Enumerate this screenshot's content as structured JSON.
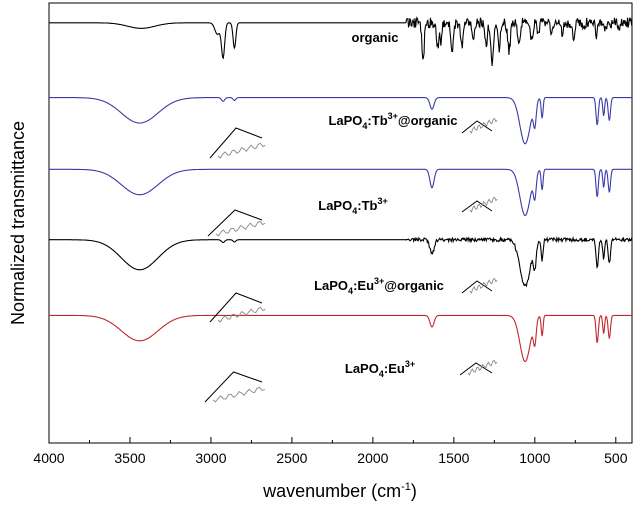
{
  "chart_data": {
    "type": "line",
    "title": "",
    "xlabel": "wavenumber (cm",
    "xlabel_sup": "-1",
    "xlabel_close": ")",
    "ylabel": "Normalized transmittance",
    "xlim": [
      4000,
      400
    ],
    "x_reversed": true,
    "x_ticks": [
      "4000",
      "3500",
      "3000",
      "2500",
      "2000",
      "1500",
      "1000",
      "500"
    ],
    "y_ticks_labeled": false,
    "grid": false,
    "legend": "none",
    "series": [
      {
        "label_main": "organic",
        "label_sub": "",
        "label_sup": "",
        "label_tail": "",
        "color": "#000000",
        "base": 0.955,
        "depth_scale": 0.105,
        "peaks": [
          [
            3430,
            0.12,
            120
          ],
          [
            2960,
            0.25,
            22
          ],
          [
            2925,
            0.75,
            14
          ],
          [
            2855,
            0.55,
            12
          ],
          [
            1690,
            0.8,
            10
          ],
          [
            1600,
            0.55,
            10
          ],
          [
            1580,
            0.4,
            8
          ],
          [
            1510,
            0.6,
            10
          ],
          [
            1450,
            0.55,
            12
          ],
          [
            1380,
            0.45,
            10
          ],
          [
            1300,
            0.5,
            10
          ],
          [
            1265,
            0.85,
            12
          ],
          [
            1220,
            0.55,
            10
          ],
          [
            1160,
            0.6,
            12
          ],
          [
            1100,
            0.45,
            12
          ],
          [
            1020,
            0.35,
            12
          ],
          [
            980,
            0.25,
            10
          ],
          [
            900,
            0.2,
            10
          ],
          [
            830,
            0.25,
            10
          ],
          [
            760,
            0.3,
            10
          ],
          [
            700,
            0.2,
            10
          ],
          [
            620,
            0.25,
            10
          ],
          [
            560,
            0.2,
            10
          ],
          [
            480,
            0.2,
            10
          ]
        ],
        "noise": 0.012
      },
      {
        "label_main": "LaPO",
        "label_sub": "4",
        "label_tail": ":Tb",
        "label_sup": "3+",
        "label_after": "@organic",
        "color": "#3a3aa8",
        "base": 0.785,
        "depth_scale": 0.105,
        "peaks": [
          [
            3440,
            0.55,
            160
          ],
          [
            2925,
            0.08,
            14
          ],
          [
            2855,
            0.06,
            12
          ],
          [
            1635,
            0.25,
            18
          ],
          [
            1060,
            1.0,
            45
          ],
          [
            1000,
            0.5,
            12
          ],
          [
            955,
            0.45,
            8
          ],
          [
            615,
            0.6,
            10
          ],
          [
            575,
            0.4,
            8
          ],
          [
            540,
            0.5,
            10
          ]
        ],
        "noise": 0.0
      },
      {
        "label_main": "LaPO",
        "label_sub": "4",
        "label_tail": ":Tb",
        "label_sup": "3+",
        "label_after": "",
        "color": "#3a3aa8",
        "base": 0.622,
        "depth_scale": 0.105,
        "peaks": [
          [
            3440,
            0.55,
            160
          ],
          [
            1635,
            0.4,
            18
          ],
          [
            1060,
            1.0,
            45
          ],
          [
            1000,
            0.5,
            12
          ],
          [
            955,
            0.45,
            8
          ],
          [
            615,
            0.6,
            10
          ],
          [
            575,
            0.4,
            8
          ],
          [
            540,
            0.5,
            10
          ]
        ],
        "noise": 0.0
      },
      {
        "label_main": "LaPO",
        "label_sub": "4",
        "label_tail": ":Eu",
        "label_sup": "3+",
        "label_after": "@organic",
        "color": "#000000",
        "base": 0.462,
        "depth_scale": 0.105,
        "peaks": [
          [
            3440,
            0.65,
            160
          ],
          [
            2925,
            0.06,
            14
          ],
          [
            2855,
            0.05,
            12
          ],
          [
            1635,
            0.3,
            18
          ],
          [
            1060,
            1.0,
            45
          ],
          [
            1000,
            0.5,
            12
          ],
          [
            955,
            0.45,
            8
          ],
          [
            615,
            0.6,
            10
          ],
          [
            575,
            0.4,
            8
          ],
          [
            540,
            0.5,
            10
          ]
        ],
        "noise": 0.004
      },
      {
        "label_main": "LaPO",
        "label_sub": "4",
        "label_tail": ":Eu",
        "label_sup": "3+",
        "label_after": "",
        "color": "#c0282e",
        "base": 0.29,
        "depth_scale": 0.105,
        "peaks": [
          [
            3440,
            0.55,
            160
          ],
          [
            1635,
            0.25,
            18
          ],
          [
            1060,
            1.0,
            45
          ],
          [
            1000,
            0.5,
            12
          ],
          [
            955,
            0.45,
            8
          ],
          [
            615,
            0.6,
            10
          ],
          [
            575,
            0.4,
            8
          ],
          [
            540,
            0.5,
            10
          ]
        ],
        "noise": 0.0
      }
    ]
  }
}
